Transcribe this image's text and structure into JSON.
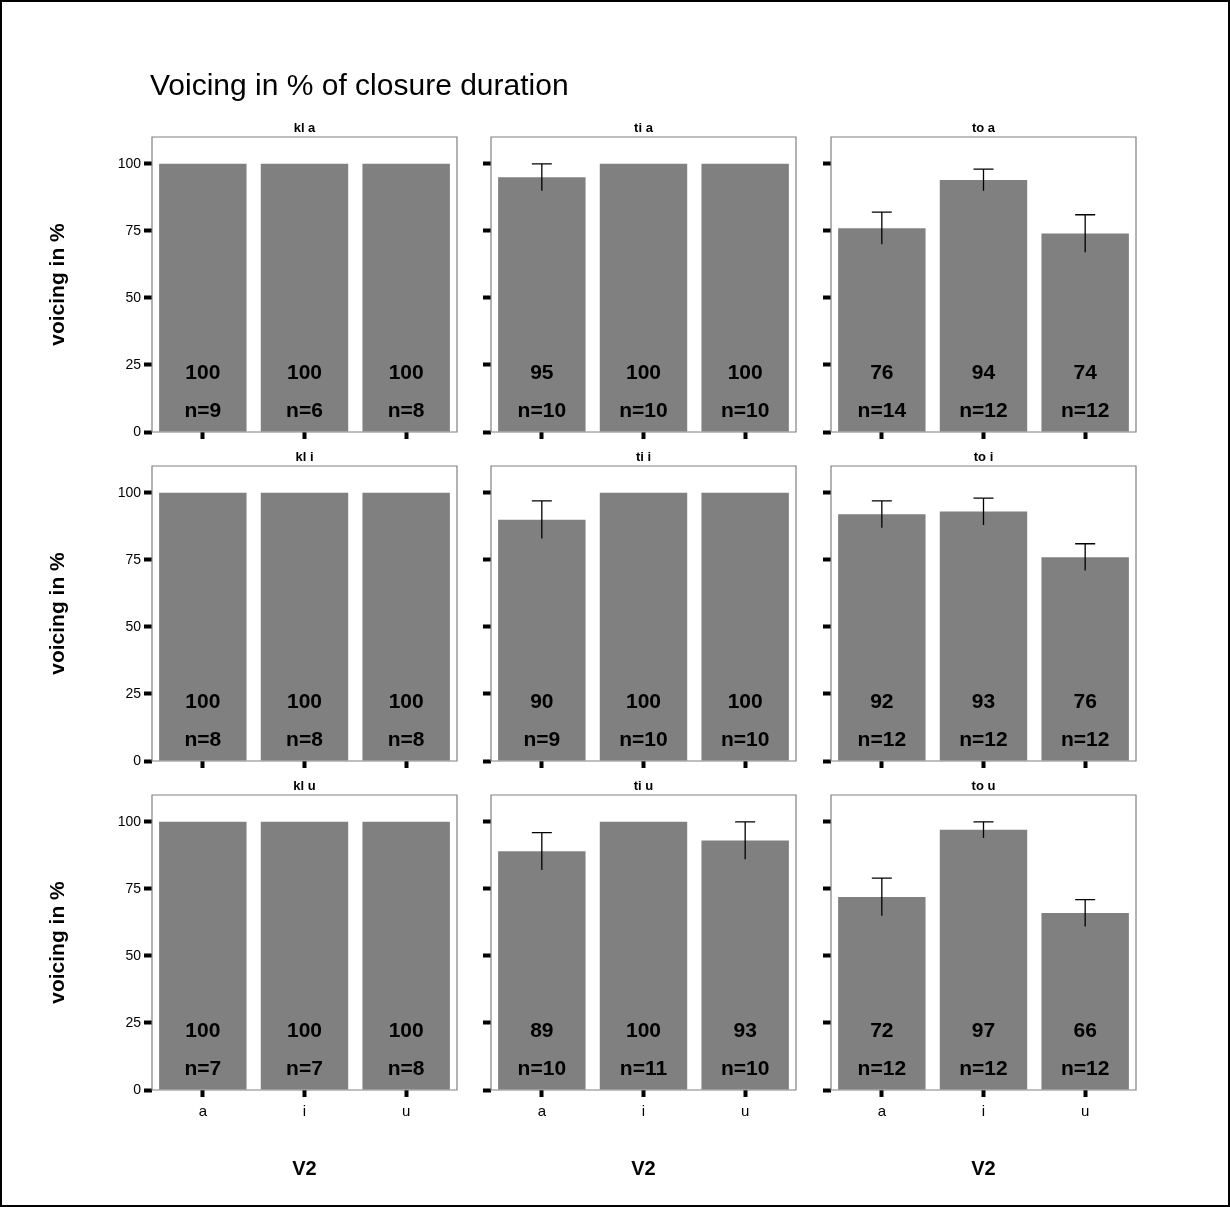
{
  "chart_data": [
    {
      "type": "bar",
      "title": "kl a",
      "ylabel": "voicing in %",
      "categories": [
        "a",
        "i",
        "u"
      ],
      "values": [
        100,
        100,
        100
      ],
      "color": "#808080",
      "ylim": [
        0,
        110
      ],
      "yticks": [
        0,
        25,
        50,
        75,
        100
      ],
      "data_labels": true,
      "tick_labels": "y",
      "annotations": [
        "Voicing in % of closure duration",
        {
          "text": "n=9",
          "x": "a",
          "y": 0
        },
        {
          "text": "n=6",
          "x": "i",
          "y": 0
        },
        {
          "text": "n=8",
          "x": "u",
          "y": 0
        }
      ]
    },
    {
      "type": "bar",
      "title": "ti a",
      "categories": [
        "a",
        "i",
        "u"
      ],
      "values": [
        95,
        100,
        100
      ],
      "errors": [
        5,
        null,
        null
      ],
      "color": "#808080",
      "ylim": [
        0,
        110
      ],
      "yticks": [
        0,
        25,
        50,
        75,
        100
      ],
      "data_labels": true,
      "tick_labels": false,
      "annotations": [
        {
          "text": "n=10",
          "x": "a",
          "y": 0
        },
        {
          "text": "n=10",
          "x": "i",
          "y": 0
        },
        {
          "text": "n=10",
          "x": "u",
          "y": 0
        }
      ]
    },
    {
      "type": "bar",
      "title": "to a",
      "categories": [
        "a",
        "i",
        "u"
      ],
      "values": [
        76,
        94,
        74
      ],
      "errors": [
        6,
        4,
        7
      ],
      "color": "#808080",
      "ylim": [
        0,
        110
      ],
      "yticks": [
        0,
        25,
        50,
        75,
        100
      ],
      "data_labels": true,
      "tick_labels": false,
      "annotations": [
        {
          "text": "n=14",
          "x": "a",
          "y": 0
        },
        {
          "text": "n=12",
          "x": "i",
          "y": 0
        },
        {
          "text": "n=12",
          "x": "u",
          "y": 0
        }
      ]
    },
    {
      "type": "bar",
      "title": "kl i",
      "ylabel": "voicing in %",
      "categories": [
        "a",
        "i",
        "u"
      ],
      "values": [
        100,
        100,
        100
      ],
      "color": "#808080",
      "ylim": [
        0,
        110
      ],
      "yticks": [
        0,
        25,
        50,
        75,
        100
      ],
      "data_labels": true,
      "tick_labels": "y",
      "annotations": [
        {
          "text": "n=8",
          "x": "a",
          "y": 0
        },
        {
          "text": "n=8",
          "x": "i",
          "y": 0
        },
        {
          "text": "n=8",
          "x": "u",
          "y": 0
        }
      ]
    },
    {
      "type": "bar",
      "title": "ti i",
      "categories": [
        "a",
        "i",
        "u"
      ],
      "values": [
        90,
        100,
        100
      ],
      "errors": [
        7,
        null,
        null
      ],
      "color": "#808080",
      "ylim": [
        0,
        110
      ],
      "yticks": [
        0,
        25,
        50,
        75,
        100
      ],
      "data_labels": true,
      "tick_labels": false,
      "annotations": [
        {
          "text": "n=9",
          "x": "a",
          "y": 0
        },
        {
          "text": "n=10",
          "x": "i",
          "y": 0
        },
        {
          "text": "n=10",
          "x": "u",
          "y": 0
        }
      ]
    },
    {
      "type": "bar",
      "title": "to i",
      "categories": [
        "a",
        "i",
        "u"
      ],
      "values": [
        92,
        93,
        76
      ],
      "errors": [
        5,
        5,
        5
      ],
      "color": "#808080",
      "ylim": [
        0,
        110
      ],
      "yticks": [
        0,
        25,
        50,
        75,
        100
      ],
      "data_labels": true,
      "tick_labels": false,
      "annotations": [
        {
          "text": "n=12",
          "x": "a",
          "y": 0
        },
        {
          "text": "n=12",
          "x": "i",
          "y": 0
        },
        {
          "text": "n=12",
          "x": "u",
          "y": 0
        }
      ]
    },
    {
      "type": "bar",
      "title": "kl u",
      "ylabel": "voicing in %",
      "xlabel": "V2",
      "categories": [
        "a",
        "i",
        "u"
      ],
      "values": [
        100,
        100,
        100
      ],
      "color": "#808080",
      "ylim": [
        0,
        110
      ],
      "yticks": [
        0,
        25,
        50,
        75,
        100
      ],
      "data_labels": true,
      "annotations": [
        {
          "text": "n=7",
          "x": "a",
          "y": 0
        },
        {
          "text": "n=7",
          "x": "i",
          "y": 0
        },
        {
          "text": "n=8",
          "x": "u",
          "y": 0
        }
      ]
    },
    {
      "type": "bar",
      "title": "ti u",
      "xlabel": "V2",
      "categories": [
        "a",
        "i",
        "u"
      ],
      "values": [
        89,
        100,
        93
      ],
      "errors": [
        7,
        null,
        7
      ],
      "color": "#808080",
      "ylim": [
        0,
        110
      ],
      "yticks": [
        0,
        25,
        50,
        75,
        100
      ],
      "data_labels": true,
      "tick_labels": "x",
      "annotations": [
        {
          "text": "n=10",
          "x": "a",
          "y": 0
        },
        {
          "text": "n=11",
          "x": "i",
          "y": 0
        },
        {
          "text": "n=10",
          "x": "u",
          "y": 0
        }
      ]
    },
    {
      "type": "bar",
      "title": "to u",
      "xlabel": "V2",
      "categories": [
        "a",
        "i",
        "u"
      ],
      "values": [
        72,
        97,
        66
      ],
      "errors": [
        7,
        3,
        5
      ],
      "color": "#808080",
      "ylim": [
        0,
        110
      ],
      "yticks": [
        0,
        25,
        50,
        75,
        100
      ],
      "data_labels": true,
      "tick_labels": "x",
      "annotations": [
        {
          "text": "n=12",
          "x": "a",
          "y": 0
        },
        {
          "text": "n=12",
          "x": "i",
          "y": 0
        },
        {
          "text": "n=12",
          "x": "u",
          "y": 0
        }
      ]
    }
  ]
}
